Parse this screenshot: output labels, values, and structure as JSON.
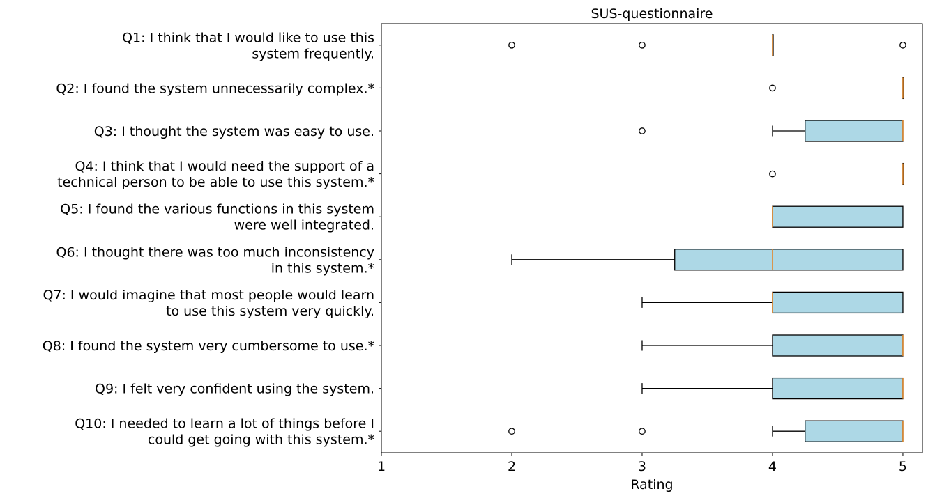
{
  "chart_data": {
    "type": "boxplot",
    "title": "SUS-questionnaire",
    "xlabel": "Rating",
    "ylabel": "",
    "xlim": [
      1,
      5.15
    ],
    "xticks": [
      1,
      2,
      3,
      4,
      5
    ],
    "grid": false,
    "box_fill": "#add8e6",
    "median_color": "#e08a30",
    "categories": [
      {
        "label_lines": [
          "Q1: I think that I would like to use this",
          "system frequently."
        ],
        "whislo": 4,
        "q1": 4,
        "med": 4,
        "q3": 4,
        "whishi": 4,
        "fliers": [
          2,
          3,
          5
        ]
      },
      {
        "label_lines": [
          "Q2: I found the system unnecessarily complex.*"
        ],
        "whislo": 5,
        "q1": 5,
        "med": 5,
        "q3": 5,
        "whishi": 5,
        "fliers": [
          4
        ]
      },
      {
        "label_lines": [
          "Q3: I thought the system was easy to use."
        ],
        "whislo": 4,
        "q1": 4.25,
        "med": 5,
        "q3": 5,
        "whishi": 5,
        "fliers": [
          3
        ]
      },
      {
        "label_lines": [
          "Q4: I think that I would need the support of a",
          "technical person to be able to use this system.*"
        ],
        "whislo": 5,
        "q1": 5,
        "med": 5,
        "q3": 5,
        "whishi": 5,
        "fliers": [
          4
        ]
      },
      {
        "label_lines": [
          "Q5: I found the various functions in this system",
          "were well integrated."
        ],
        "whislo": 4,
        "q1": 4,
        "med": 4,
        "q3": 5,
        "whishi": 5,
        "fliers": []
      },
      {
        "label_lines": [
          "Q6: I thought there was too much inconsistency",
          "in this system.*"
        ],
        "whislo": 2,
        "q1": 3.25,
        "med": 4,
        "q3": 5,
        "whishi": 5,
        "fliers": []
      },
      {
        "label_lines": [
          "Q7: I would imagine that most people would learn",
          "to use this system very quickly."
        ],
        "whislo": 3,
        "q1": 4,
        "med": 4,
        "q3": 5,
        "whishi": 5,
        "fliers": []
      },
      {
        "label_lines": [
          "Q8: I found the system very cumbersome to use.*"
        ],
        "whislo": 3,
        "q1": 4,
        "med": 5,
        "q3": 5,
        "whishi": 5,
        "fliers": []
      },
      {
        "label_lines": [
          "Q9: I felt very confident using the system."
        ],
        "whislo": 3,
        "q1": 4,
        "med": 5,
        "q3": 5,
        "whishi": 5,
        "fliers": []
      },
      {
        "label_lines": [
          "Q10: I needed to learn a lot of things before I",
          "could get going with this system.*"
        ],
        "whislo": 4,
        "q1": 4.25,
        "med": 5,
        "q3": 5,
        "whishi": 5,
        "fliers": [
          2,
          3
        ]
      }
    ]
  }
}
